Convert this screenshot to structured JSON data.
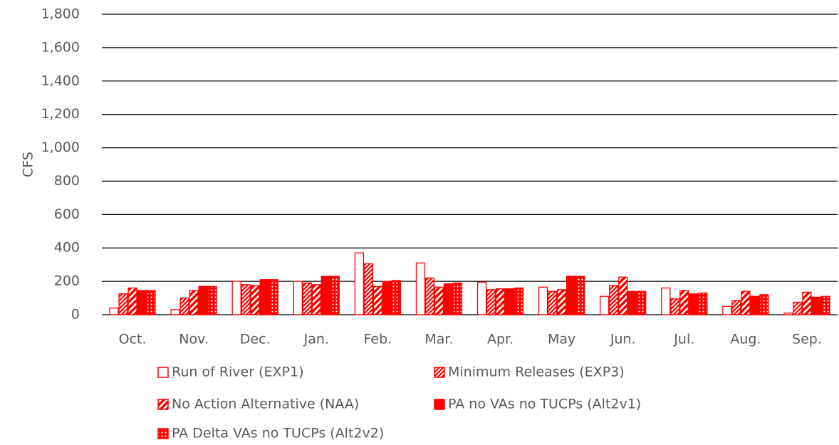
{
  "chart_data": {
    "type": "bar",
    "y_label": "CFS",
    "categories": [
      "Oct.",
      "Nov.",
      "Dec.",
      "Jan.",
      "Feb.",
      "Mar.",
      "Apr.",
      "May",
      "Jun.",
      "Jul.",
      "Aug.",
      "Sep."
    ],
    "series": [
      {
        "name": "Run of River (EXP1)",
        "color": "#ff0000",
        "pattern": "none",
        "values": [
          40,
          30,
          200,
          200,
          370,
          310,
          195,
          165,
          110,
          160,
          50,
          10
        ]
      },
      {
        "name": "Minimum Releases (EXP3)",
        "color": "#ff0000",
        "pattern": "fine-hatch",
        "values": [
          125,
          100,
          180,
          190,
          305,
          220,
          150,
          140,
          175,
          95,
          85,
          75
        ]
      },
      {
        "name": "No Action Alternative (NAA)",
        "color": "#ff0000",
        "pattern": "wide-hatch",
        "values": [
          160,
          145,
          175,
          180,
          170,
          165,
          155,
          150,
          225,
          145,
          140,
          135
        ]
      },
      {
        "name": "PA no VAs no TUCPs (Alt2v1)",
        "color": "#ff0000",
        "pattern": "solid",
        "values": [
          145,
          170,
          210,
          230,
          200,
          185,
          155,
          230,
          140,
          125,
          110,
          105
        ]
      },
      {
        "name": "PA Delta VAs no TUCPs (Alt2v2)",
        "color": "#ff0000",
        "pattern": "dots",
        "values": [
          145,
          170,
          210,
          230,
          205,
          190,
          160,
          230,
          140,
          130,
          120,
          110
        ]
      }
    ],
    "ylim": [
      0,
      1800
    ],
    "yticks": [
      0,
      200,
      400,
      600,
      800,
      {
        "value": 1000,
        "label": "1,000"
      },
      {
        "value": 1200,
        "label": "1,200"
      },
      {
        "value": 1400,
        "label": "1,400"
      },
      {
        "value": 1600,
        "label": "1,600"
      },
      {
        "value": 1800,
        "label": "1,800"
      }
    ],
    "grid": true
  }
}
